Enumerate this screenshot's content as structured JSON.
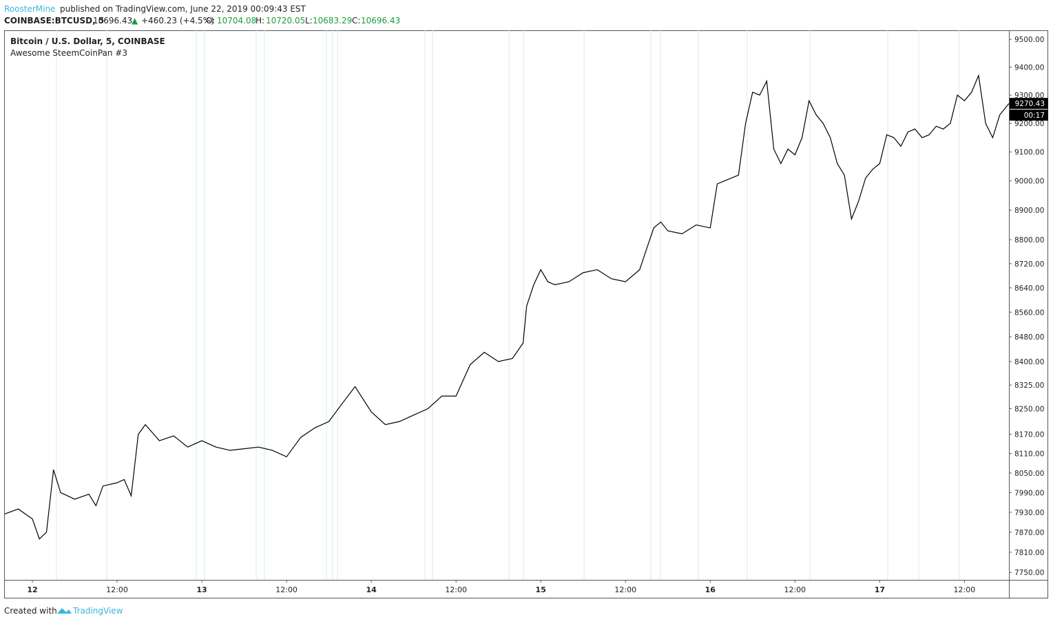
{
  "header": {
    "author": "RoosterMine",
    "published": "published on TradingView.com, June 22, 2019 00:09:43 EST",
    "symbol": "COINBASE:BTCUSD, 5",
    "price": "10696.43",
    "arrow": "▲",
    "change": "+460.23 (+4.5%)",
    "o_label": "O:",
    "o": "10704.08",
    "h_label": "H:",
    "h": "10720.05",
    "l_label": "L:",
    "l": "10683.29",
    "c_label": "C:",
    "c": "10696.43"
  },
  "footer": {
    "created": "Created with",
    "brand": "TradingView"
  },
  "chart_data": {
    "type": "line",
    "title": "Bitcoin / U.S. Dollar, 5, COINBASE",
    "subtitle": "Awesome SteemCoinPan #3",
    "log_scale": true,
    "color": "#000000",
    "last_price": 9270.43,
    "countdown": "00:17",
    "xlim": [
      -3.9,
      138.3
    ],
    "ylim": [
      7728,
      9533
    ],
    "xticks": [
      {
        "value": 0,
        "label": "12"
      },
      {
        "value": 12,
        "label": "12:00"
      },
      {
        "value": 24,
        "label": "13"
      },
      {
        "value": 36,
        "label": "12:00"
      },
      {
        "value": 48,
        "label": "14"
      },
      {
        "value": 60,
        "label": "12:00"
      },
      {
        "value": 72,
        "label": "15"
      },
      {
        "value": 84,
        "label": "12:00"
      },
      {
        "value": 96,
        "label": "16"
      },
      {
        "value": 108,
        "label": "12:00"
      },
      {
        "value": 120,
        "label": "17"
      },
      {
        "value": 132,
        "label": "12:00"
      }
    ],
    "yticks": [
      {
        "value": 7750,
        "label": "7750.00"
      },
      {
        "value": 7810,
        "label": "7810.00"
      },
      {
        "value": 7870,
        "label": "7870.00"
      },
      {
        "value": 7930,
        "label": "7930.00"
      },
      {
        "value": 7990,
        "label": "7990.00"
      },
      {
        "value": 8050,
        "label": "8050.00"
      },
      {
        "value": 8110,
        "label": "8110.00"
      },
      {
        "value": 8170,
        "label": "8170.00"
      },
      {
        "value": 8250,
        "label": "8250.00"
      },
      {
        "value": 8325,
        "label": "8325.00"
      },
      {
        "value": 8400,
        "label": "8400.00"
      },
      {
        "value": 8480,
        "label": "8480.00"
      },
      {
        "value": 8560,
        "label": "8560.00"
      },
      {
        "value": 8640,
        "label": "8640.00"
      },
      {
        "value": 8720,
        "label": "8720.00"
      },
      {
        "value": 8800,
        "label": "8800.00"
      },
      {
        "value": 8900,
        "label": "8900.00"
      },
      {
        "value": 9000,
        "label": "9000.00"
      },
      {
        "value": 9100,
        "label": "9100.00"
      },
      {
        "value": 9200,
        "label": "9200.00"
      },
      {
        "value": 9300,
        "label": "9300.00"
      },
      {
        "value": 9400,
        "label": "9400.00"
      },
      {
        "value": 9500,
        "label": "9500.00"
      }
    ],
    "series": [
      {
        "name": "BTCUSD",
        "x": [
          -3.9,
          -2,
          0,
          1,
          2,
          3,
          4,
          6,
          8,
          9,
          10,
          12,
          13,
          14,
          15,
          16,
          18,
          20,
          22,
          24,
          26,
          28,
          30,
          32,
          34,
          36,
          38,
          40,
          42,
          44,
          45.7,
          48,
          50,
          52,
          54,
          56,
          58,
          60,
          62,
          64,
          66,
          68,
          69.5,
          70,
          71,
          72,
          73,
          74,
          76,
          78,
          80,
          82,
          84,
          86,
          87,
          88,
          89,
          90,
          92,
          94,
          96,
          97,
          98,
          100,
          101,
          102,
          103,
          104,
          105,
          106,
          107,
          108,
          109,
          110,
          111,
          112,
          113,
          114,
          115,
          116,
          117,
          118,
          119,
          120,
          121,
          122,
          123,
          124,
          125,
          126,
          127,
          128,
          129,
          130,
          131,
          132,
          133,
          134,
          135,
          136,
          137,
          138.3
        ],
        "values": [
          7925,
          7940,
          7910,
          7850,
          7870,
          8060,
          7990,
          7970,
          7985,
          7950,
          8010,
          8020,
          8030,
          7980,
          8170,
          8200,
          8150,
          8165,
          8130,
          8150,
          8130,
          8120,
          8125,
          8130,
          8120,
          8100,
          8160,
          8190,
          8210,
          8270,
          8320,
          8240,
          8200,
          8210,
          8230,
          8250,
          8290,
          8290,
          8390,
          8430,
          8400,
          8410,
          8460,
          8580,
          8650,
          8700,
          8660,
          8650,
          8660,
          8690,
          8700,
          8670,
          8660,
          8700,
          8770,
          8840,
          8860,
          8830,
          8820,
          8850,
          8840,
          8990,
          9000,
          9020,
          9200,
          9310,
          9300,
          9350,
          9110,
          9060,
          9110,
          9090,
          9150,
          9280,
          9230,
          9200,
          9150,
          9060,
          9020,
          8870,
          8930,
          9010,
          9040,
          9060,
          9160,
          9150,
          9120,
          9170,
          9180,
          9150,
          9160,
          9190,
          9180,
          9200,
          9300,
          9280,
          9310,
          9370,
          9200,
          9150,
          9230,
          9270
        ]
      }
    ]
  }
}
